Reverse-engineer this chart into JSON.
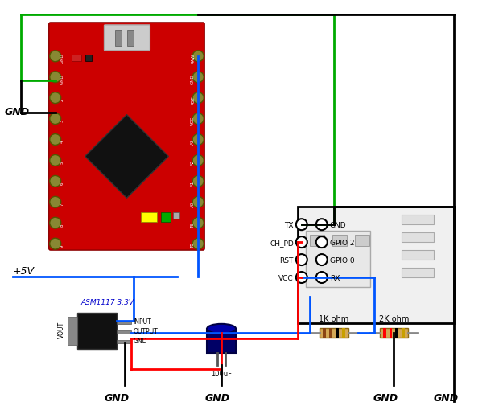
{
  "bg_color": "#ffffff",
  "wire_colors": {
    "green": "#00aa00",
    "blue": "#0055ff",
    "red": "#ff0000",
    "black": "#000000"
  },
  "labels": {
    "gnd_left": "GND",
    "gnd_regulator": "GND",
    "gnd_cap": "GND",
    "gnd_mid": "GND",
    "gnd_right": "GND",
    "plus5v": "+5V",
    "asm_label": "ASM1117 3.3V",
    "vout_label": "VOUT",
    "input_label": "INPUT",
    "output_label": "OUTPUT",
    "gnd_label": "GND",
    "resistor1": "1K ohm",
    "resistor2": "2K ohm",
    "cap_label": "100uF",
    "tx_label": "TX",
    "ch_pd_label": "CH_PD",
    "rst_label": "RST",
    "vcc_label": "VCC",
    "gnd_pin": "GND",
    "gpio2_label": "GPIO 2",
    "gpio0_label": "GPIO 0",
    "rx_label": "RX"
  }
}
